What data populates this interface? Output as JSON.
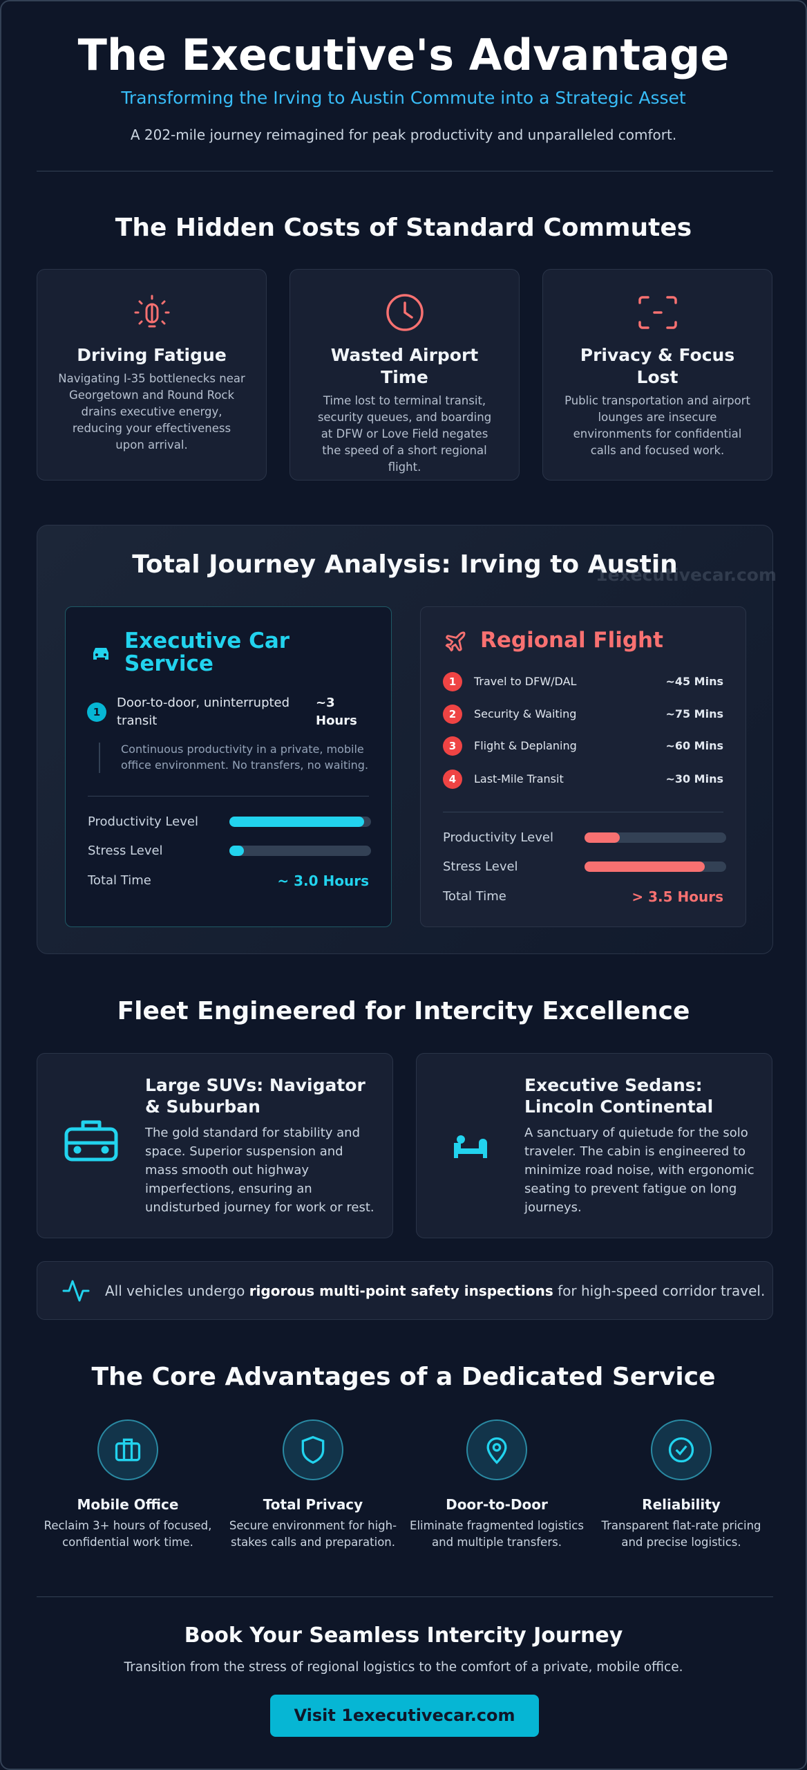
{
  "header": {
    "title": "The Executive's Advantage",
    "subtitle": "Transforming the Irving to Austin Commute into a Strategic Asset",
    "tagline": "A 202-mile journey reimagined for peak productivity and unparalleled comfort."
  },
  "hidden_costs": {
    "heading": "The Hidden Costs of Standard Commutes",
    "cards": [
      {
        "title": "Driving Fatigue",
        "text": "Navigating I-35 bottlenecks near Georgetown and Round Rock drains executive energy, reducing your effectiveness upon arrival."
      },
      {
        "title": "Wasted Airport Time",
        "text": "Time lost to terminal transit, security queues, and boarding at DFW or Love Field negates the speed of a short regional flight."
      },
      {
        "title": "Privacy & Focus Lost",
        "text": "Public transportation and airport lounges are insecure environments for confidential calls and focused work."
      }
    ]
  },
  "analysis": {
    "heading": "Total Journey Analysis: Irving to Austin",
    "watermark": "1executivecar.com",
    "executive": {
      "title": "Executive Car Service",
      "step": {
        "number": 1,
        "label": "Door-to-door, uninterrupted transit",
        "time": "~3 Hours"
      },
      "note": "Continuous productivity in a private, mobile office environment. No transfers, no waiting.",
      "productivity_label": "Productivity Level",
      "productivity": 95,
      "stress_label": "Stress Level",
      "stress": 10,
      "total_label": "Total Time",
      "total": "~ 3.0 Hours"
    },
    "flight": {
      "title": "Regional Flight",
      "steps": [
        {
          "number": 1,
          "label": "Travel to DFW/DAL",
          "time": "~45 Mins"
        },
        {
          "number": 2,
          "label": "Security & Waiting",
          "time": "~75 Mins"
        },
        {
          "number": 3,
          "label": "Flight & Deplaning",
          "time": "~60 Mins"
        },
        {
          "number": 4,
          "label": "Last-Mile Transit",
          "time": "~30 Mins"
        }
      ],
      "productivity_label": "Productivity Level",
      "productivity": 25,
      "stress_label": "Stress Level",
      "stress": 85,
      "total_label": "Total Time",
      "total": "> 3.5 Hours"
    }
  },
  "fleet": {
    "heading": "Fleet Engineered for Intercity Excellence",
    "cards": [
      {
        "title": "Large SUVs: Navigator & Suburban",
        "text": "The gold standard for stability and space. Superior suspension and mass smooth out highway imperfections, ensuring an undisturbed journey for work or rest."
      },
      {
        "title": "Executive Sedans: Lincoln Continental",
        "text": "A sanctuary of quietude for the solo traveler. The cabin is engineered to minimize road noise, with ergonomic seating to prevent fatigue on long journeys."
      }
    ],
    "safety": {
      "prefix": "All vehicles undergo",
      "emphasis": "rigorous multi-point safety inspections",
      "suffix": "for high-speed corridor travel."
    }
  },
  "core": {
    "heading": "The Core Advantages of a Dedicated Service",
    "items": [
      {
        "title": "Mobile Office",
        "text": "Reclaim 3+ hours of focused, confidential work time."
      },
      {
        "title": "Total Privacy",
        "text": "Secure environment for high-stakes calls and preparation."
      },
      {
        "title": "Door-to-Door",
        "text": "Eliminate fragmented logistics and multiple transfers."
      },
      {
        "title": "Reliability",
        "text": "Transparent flat-rate pricing and precise logistics."
      }
    ]
  },
  "cta": {
    "heading": "Book Your Seamless Intercity Journey",
    "text": "Transition from the stress of regional logistics to the comfort of a private, mobile office.",
    "button": "Visit 1executivecar.com"
  }
}
